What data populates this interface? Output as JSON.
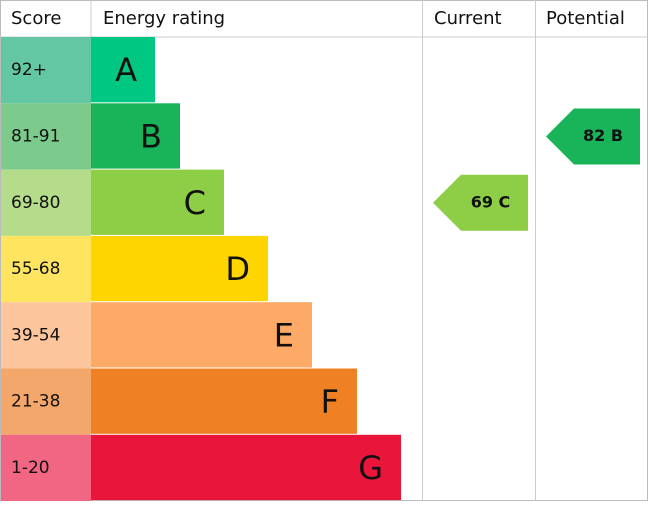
{
  "chart_data": {
    "type": "epc",
    "headers": [
      "Score",
      "Energy rating",
      "Current",
      "Potential"
    ],
    "bands": [
      {
        "score": "92+",
        "letter": "A",
        "color": "#00c781",
        "score_color": "#63c7a3"
      },
      {
        "score": "81-91",
        "letter": "B",
        "color": "#19b459",
        "score_color": "#7ccb8c"
      },
      {
        "score": "69-80",
        "letter": "C",
        "color": "#8dce46",
        "score_color": "#b5dc8a"
      },
      {
        "score": "55-68",
        "letter": "D",
        "color": "#ffd500",
        "score_color": "#ffe45f"
      },
      {
        "score": "39-54",
        "letter": "E",
        "color": "#fcaa65",
        "score_color": "#fdc59c"
      },
      {
        "score": "21-38",
        "letter": "F",
        "color": "#ef8023",
        "score_color": "#f4a76a"
      },
      {
        "score": "1-20",
        "letter": "G",
        "color": "#e9153b",
        "score_color": "#f06683"
      }
    ],
    "current": {
      "value": 69,
      "label": "69 C"
    },
    "potential": {
      "value": 82,
      "label": "82 B"
    }
  }
}
